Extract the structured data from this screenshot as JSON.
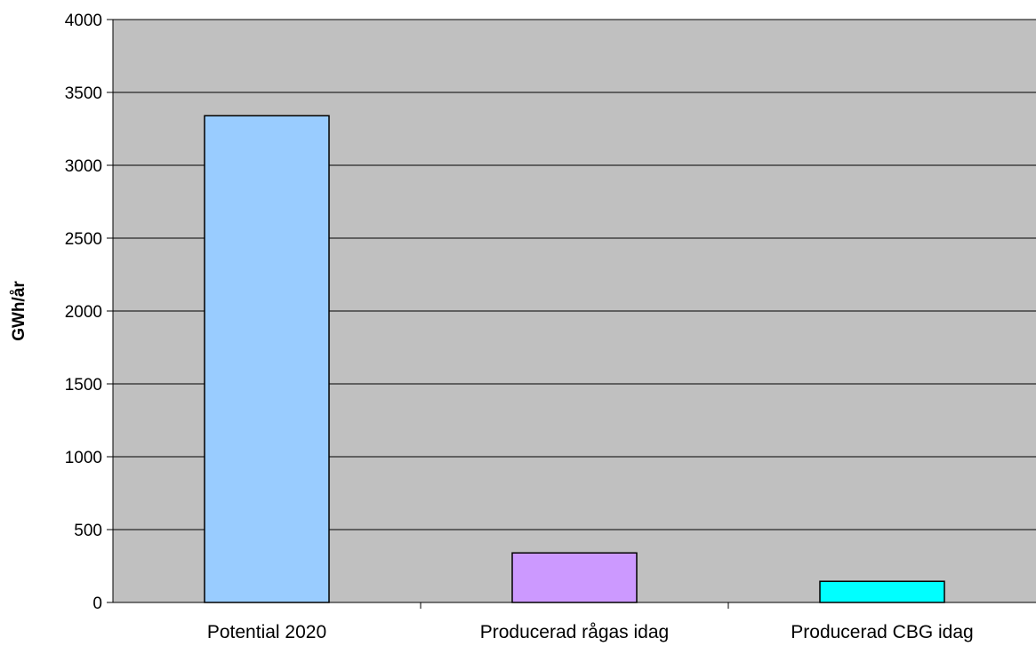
{
  "chart_data": {
    "type": "bar",
    "categories": [
      "Potential 2020",
      "Producerad rågas idag",
      "Producerad CBG idag"
    ],
    "values": [
      3340,
      340,
      145
    ],
    "title": "",
    "xlabel": "",
    "ylabel": "GWh/år",
    "ylim": [
      0,
      4000
    ],
    "yticks": [
      0,
      500,
      1000,
      1500,
      2000,
      2500,
      3000,
      3500,
      4000
    ],
    "grid": true,
    "legend": "none",
    "colors": [
      "#99CCFF",
      "#CC99FF",
      "#00FFFF"
    ],
    "plot_background": "#C0C0C0"
  }
}
